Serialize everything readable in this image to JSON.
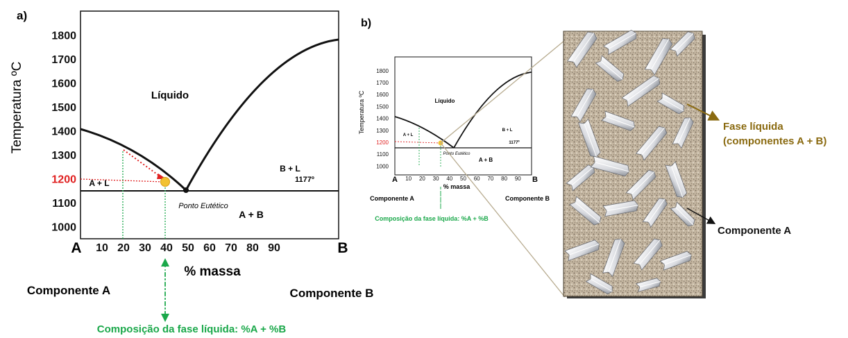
{
  "panel_a": {
    "label": "a)",
    "ylabel": "Temperatura ºC",
    "xlabel": "% massa",
    "x_end_left": "A",
    "x_end_right": "B",
    "x_ticks": [
      "10",
      "20",
      "30",
      "40",
      "50",
      "60",
      "70",
      "80",
      "90"
    ],
    "y_ticks": [
      "1800",
      "1700",
      "1600",
      "1500",
      "1400",
      "1300",
      "1200",
      "1100",
      "1000"
    ],
    "highlight_tick": "1200",
    "region_liquid": "Líquido",
    "region_a_l": "A + L",
    "region_b_l": "B + L",
    "region_a_b": "A + B",
    "eutectic_temp": "1177º",
    "eutectic_label": "Ponto Eutético",
    "component_a": "Componente A",
    "component_b": "Componente B",
    "composition_label": "Composição da fase líquida: %A + %B"
  },
  "panel_b": {
    "label": "b)",
    "ylabel": "Temperatura ºC",
    "xlabel": "% massa",
    "x_end_left": "A",
    "x_end_right": "B",
    "x_ticks": [
      "10",
      "20",
      "30",
      "40",
      "50",
      "60",
      "70",
      "80",
      "90"
    ],
    "y_ticks": [
      "1800",
      "1700",
      "1600",
      "1500",
      "1400",
      "1300",
      "1200",
      "1100",
      "1000"
    ],
    "highlight_tick": "1200",
    "region_liquid": "Líquido",
    "region_a_l": "A + L",
    "region_b_l": "B + L",
    "region_a_b": "A + B",
    "eutectic_temp": "1177º",
    "eutectic_label": "Ponto Eutético",
    "component_a": "Componente A",
    "component_b": "Componente B",
    "composition_label": "Composição da fase líquida: %A + %B"
  },
  "micro": {
    "liquid_label_line1": "Fase líquida",
    "liquid_label_line2": "(componentes A + B)",
    "solid_label": "Componente A"
  },
  "colors": {
    "green": "#1aa84a",
    "red": "#e02020",
    "brown": "#8a6a10",
    "matrix": "#c2b39d"
  }
}
